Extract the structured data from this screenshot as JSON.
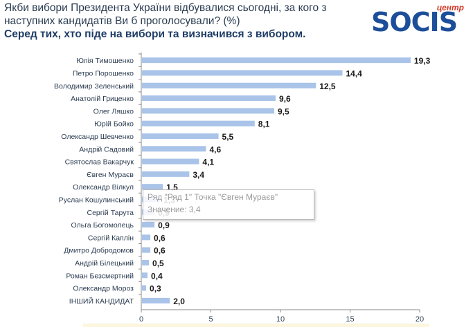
{
  "header": {
    "question": "Якби вибори Президента України відбувалися сьогодні, за кого з наступних кандидатів Ви б проголосували? (%)",
    "subtitle": "Серед тих, хто піде на вибори та визначився з вибором."
  },
  "logo": {
    "small_text": "центр",
    "word": "SOCIS"
  },
  "tooltip": {
    "line1": "Ряд \"Ряд 1\" Точка \"Євген Мураєв\"",
    "line2": "Значение: 3,4"
  },
  "chart_data": {
    "type": "bar",
    "orientation": "horizontal",
    "categories": [
      "Юлія Тимошенко",
      "Петро Порошенко",
      "Володимир Зеленський",
      "Анатолій Гриценко",
      "Олег Ляшко",
      "Юрій Бойко",
      "Олександр Шевченко",
      "Андрій Садовий",
      "Святослав Вакарчук",
      "Євген Мураєв",
      "Олександр Вілкул",
      "Руслан Кошулинський",
      "Сергій Тарута",
      "Ольга Богомолець",
      "Сергій Каплін",
      "Дмитро Добродомов",
      "Андрій Білецький",
      "Роман Безсмертний",
      "Олександр Мороз",
      "ІНШИЙ КАНДИДАТ"
    ],
    "values": [
      19.3,
      14.4,
      12.5,
      9.6,
      9.5,
      8.1,
      5.5,
      4.6,
      4.1,
      3.4,
      1.5,
      1.3,
      0.9,
      0.9,
      0.6,
      0.6,
      0.5,
      0.4,
      0.3,
      2.0
    ],
    "value_labels": [
      "19,3",
      "14,4",
      "12,5",
      "9,6",
      "9,5",
      "8,1",
      "5,5",
      "4,6",
      "4,1",
      "3,4",
      "1,5",
      "1,3",
      "0,9",
      "0,9",
      "0,6",
      "0,6",
      "0,5",
      "0,4",
      "0,3",
      "2,0"
    ],
    "xlim": [
      0,
      20
    ],
    "xticks": [
      0,
      5,
      10,
      15,
      20
    ],
    "bar_color": "#a9c4e8",
    "grid": false,
    "legend": "none"
  }
}
